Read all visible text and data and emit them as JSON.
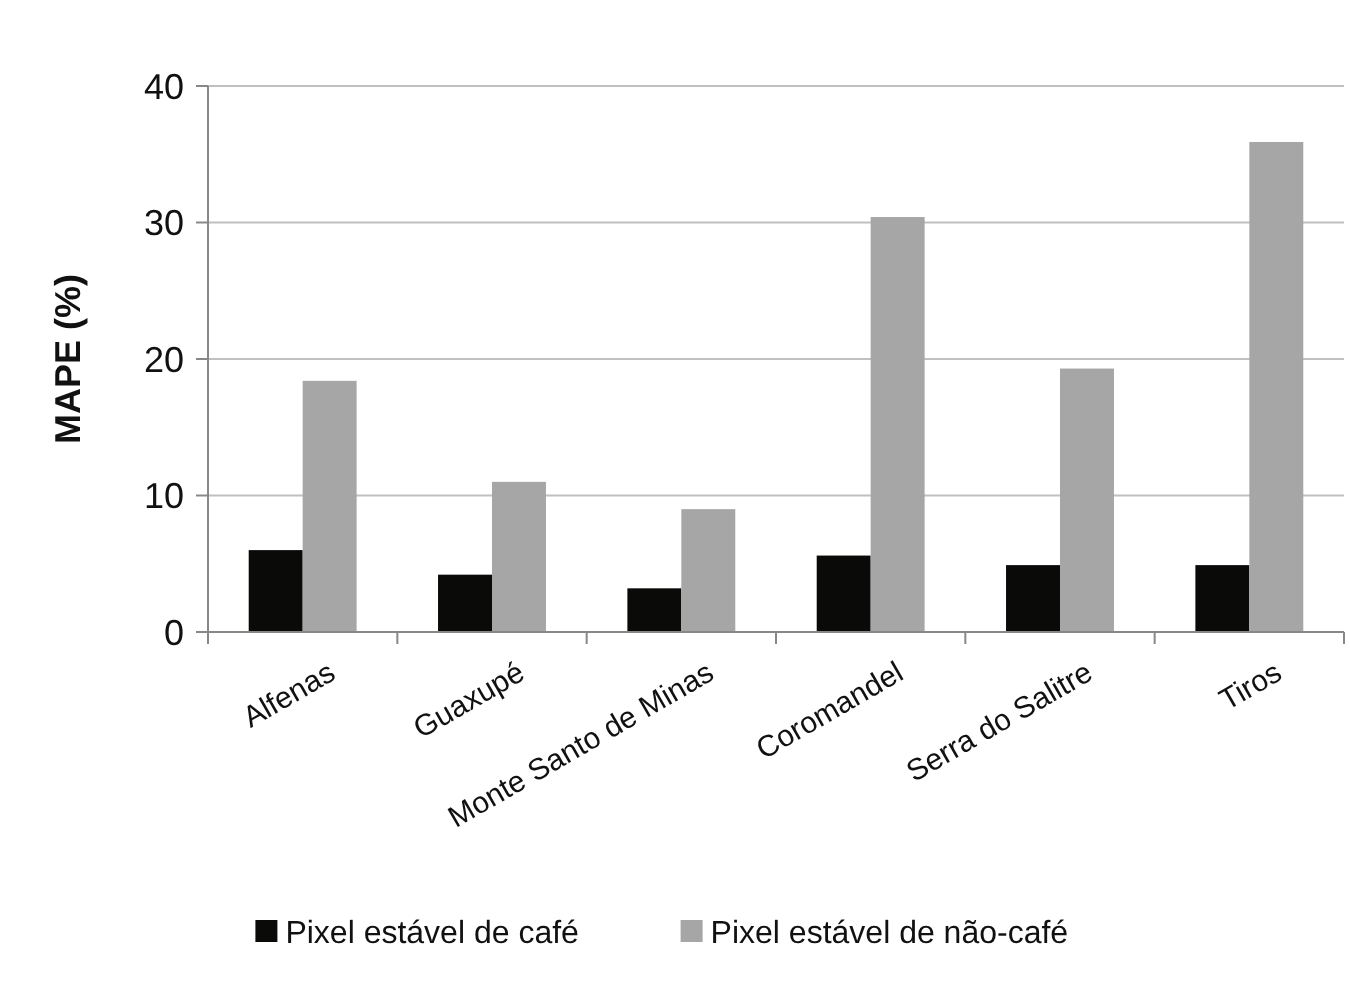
{
  "chart_data": {
    "type": "bar",
    "ylabel": "MAPE (%)",
    "categories": [
      "Alfenas",
      "Guaxupé",
      "Monte Santo de Minas",
      "Coromandel",
      "Serra do Salitre",
      "Tiros"
    ],
    "series": [
      {
        "name": "Pixel estável de café",
        "color": "#0a0a08",
        "values": [
          6.0,
          4.2,
          3.2,
          5.6,
          4.9,
          4.9
        ]
      },
      {
        "name": "Pixel estável de não-café",
        "color": "#a6a6a6",
        "values": [
          18.4,
          11.0,
          9.0,
          30.4,
          19.3,
          35.9
        ]
      }
    ],
    "ylim": [
      0,
      40
    ],
    "yticks": [
      0,
      10,
      20,
      30,
      40
    ],
    "grid": "y",
    "legend": "bottom"
  }
}
